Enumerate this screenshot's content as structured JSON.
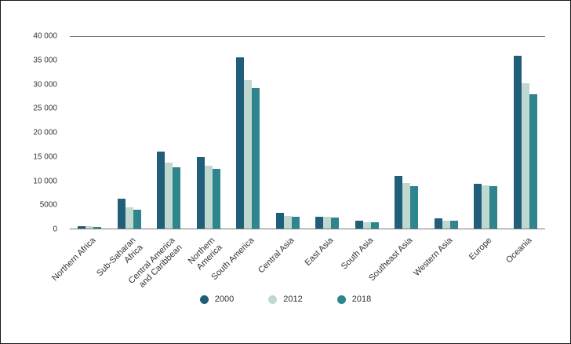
{
  "chart_data": {
    "type": "bar",
    "title": "",
    "xlabel": "",
    "ylabel": "",
    "ylim": [
      0,
      40000
    ],
    "ytick_step": 5000,
    "yticks": [
      "40 000",
      "35 000",
      "30 000",
      "25 000",
      "20 000",
      "15 000",
      "10 000",
      "5000",
      "0"
    ],
    "grid": "top and baseline only",
    "legend_position": "bottom center",
    "categories": [
      "Northern Africa",
      "Sub-Saharan\nAfrica",
      "Central America\nand Caribbean",
      "Northern\nAmerica",
      "South America",
      "Central Asia",
      "East Asia",
      "South Asia",
      "Southeast Asia",
      "Western Asia",
      "Europe",
      "Oceania"
    ],
    "series": [
      {
        "name": "2000",
        "color": "#205e79",
        "values": [
          550,
          6200,
          16000,
          15000,
          35800,
          3300,
          2500,
          1600,
          11000,
          2100,
          9300,
          36000
        ]
      },
      {
        "name": "2012",
        "color": "#bfd9d1",
        "values": [
          450,
          4400,
          13800,
          13200,
          31000,
          2600,
          2400,
          1350,
          9500,
          1700,
          9100,
          30400
        ]
      },
      {
        "name": "2018",
        "color": "#2e858b",
        "values": [
          400,
          3900,
          12800,
          12500,
          29400,
          2500,
          2300,
          1300,
          8800,
          1600,
          8900,
          28000
        ]
      }
    ]
  }
}
